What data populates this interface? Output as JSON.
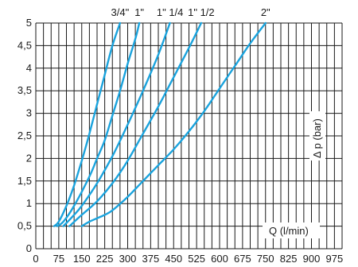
{
  "chart_data": {
    "type": "line",
    "xlabel": "Q (l/min)",
    "ylabel": "Δ p (bar)",
    "xlim": [
      0,
      1000
    ],
    "ylim": [
      0,
      5
    ],
    "grid": true,
    "x_ticks": [
      "0",
      "75",
      "150",
      "225",
      "300",
      "375",
      "450",
      "525",
      "600",
      "675",
      "750",
      "825",
      "900",
      "975"
    ],
    "y_ticks": [
      "0",
      "0,5",
      "1",
      "1,5",
      "2",
      "2,5",
      "3",
      "3,5",
      "4",
      "4,5",
      "5"
    ],
    "line_color": "#1aa3dd",
    "series": [
      {
        "name": "3/4\"",
        "points": [
          [
            60,
            0.5
          ],
          [
            75,
            0.6
          ],
          [
            100,
            0.95
          ],
          [
            125,
            1.4
          ],
          [
            150,
            1.95
          ],
          [
            175,
            2.55
          ],
          [
            200,
            3.2
          ],
          [
            225,
            3.85
          ],
          [
            250,
            4.5
          ],
          [
            275,
            5.0
          ]
        ]
      },
      {
        "name": "1\"",
        "points": [
          [
            70,
            0.5
          ],
          [
            90,
            0.6
          ],
          [
            125,
            0.95
          ],
          [
            175,
            1.6
          ],
          [
            200,
            2.0
          ],
          [
            225,
            2.4
          ],
          [
            250,
            2.95
          ],
          [
            275,
            3.5
          ],
          [
            300,
            4.1
          ],
          [
            325,
            4.65
          ],
          [
            338,
            5.0
          ]
        ]
      },
      {
        "name": "1\" 1/4",
        "points": [
          [
            90,
            0.5
          ],
          [
            125,
            0.75
          ],
          [
            150,
            0.95
          ],
          [
            200,
            1.45
          ],
          [
            250,
            2.05
          ],
          [
            300,
            2.75
          ],
          [
            350,
            3.5
          ],
          [
            400,
            4.3
          ],
          [
            438,
            5.0
          ]
        ]
      },
      {
        "name": "1\" 1/2",
        "points": [
          [
            110,
            0.5
          ],
          [
            150,
            0.75
          ],
          [
            200,
            1.05
          ],
          [
            250,
            1.45
          ],
          [
            300,
            1.95
          ],
          [
            350,
            2.55
          ],
          [
            400,
            3.15
          ],
          [
            450,
            3.8
          ],
          [
            500,
            4.45
          ],
          [
            540,
            5.0
          ]
        ]
      },
      {
        "name": "2\"",
        "points": [
          [
            150,
            0.5
          ],
          [
            175,
            0.6
          ],
          [
            225,
            0.75
          ],
          [
            250,
            0.85
          ],
          [
            300,
            1.15
          ],
          [
            350,
            1.5
          ],
          [
            400,
            1.85
          ],
          [
            450,
            2.2
          ],
          [
            500,
            2.6
          ],
          [
            550,
            3.05
          ],
          [
            600,
            3.55
          ],
          [
            650,
            4.05
          ],
          [
            700,
            4.55
          ],
          [
            750,
            5.0
          ]
        ]
      }
    ]
  }
}
